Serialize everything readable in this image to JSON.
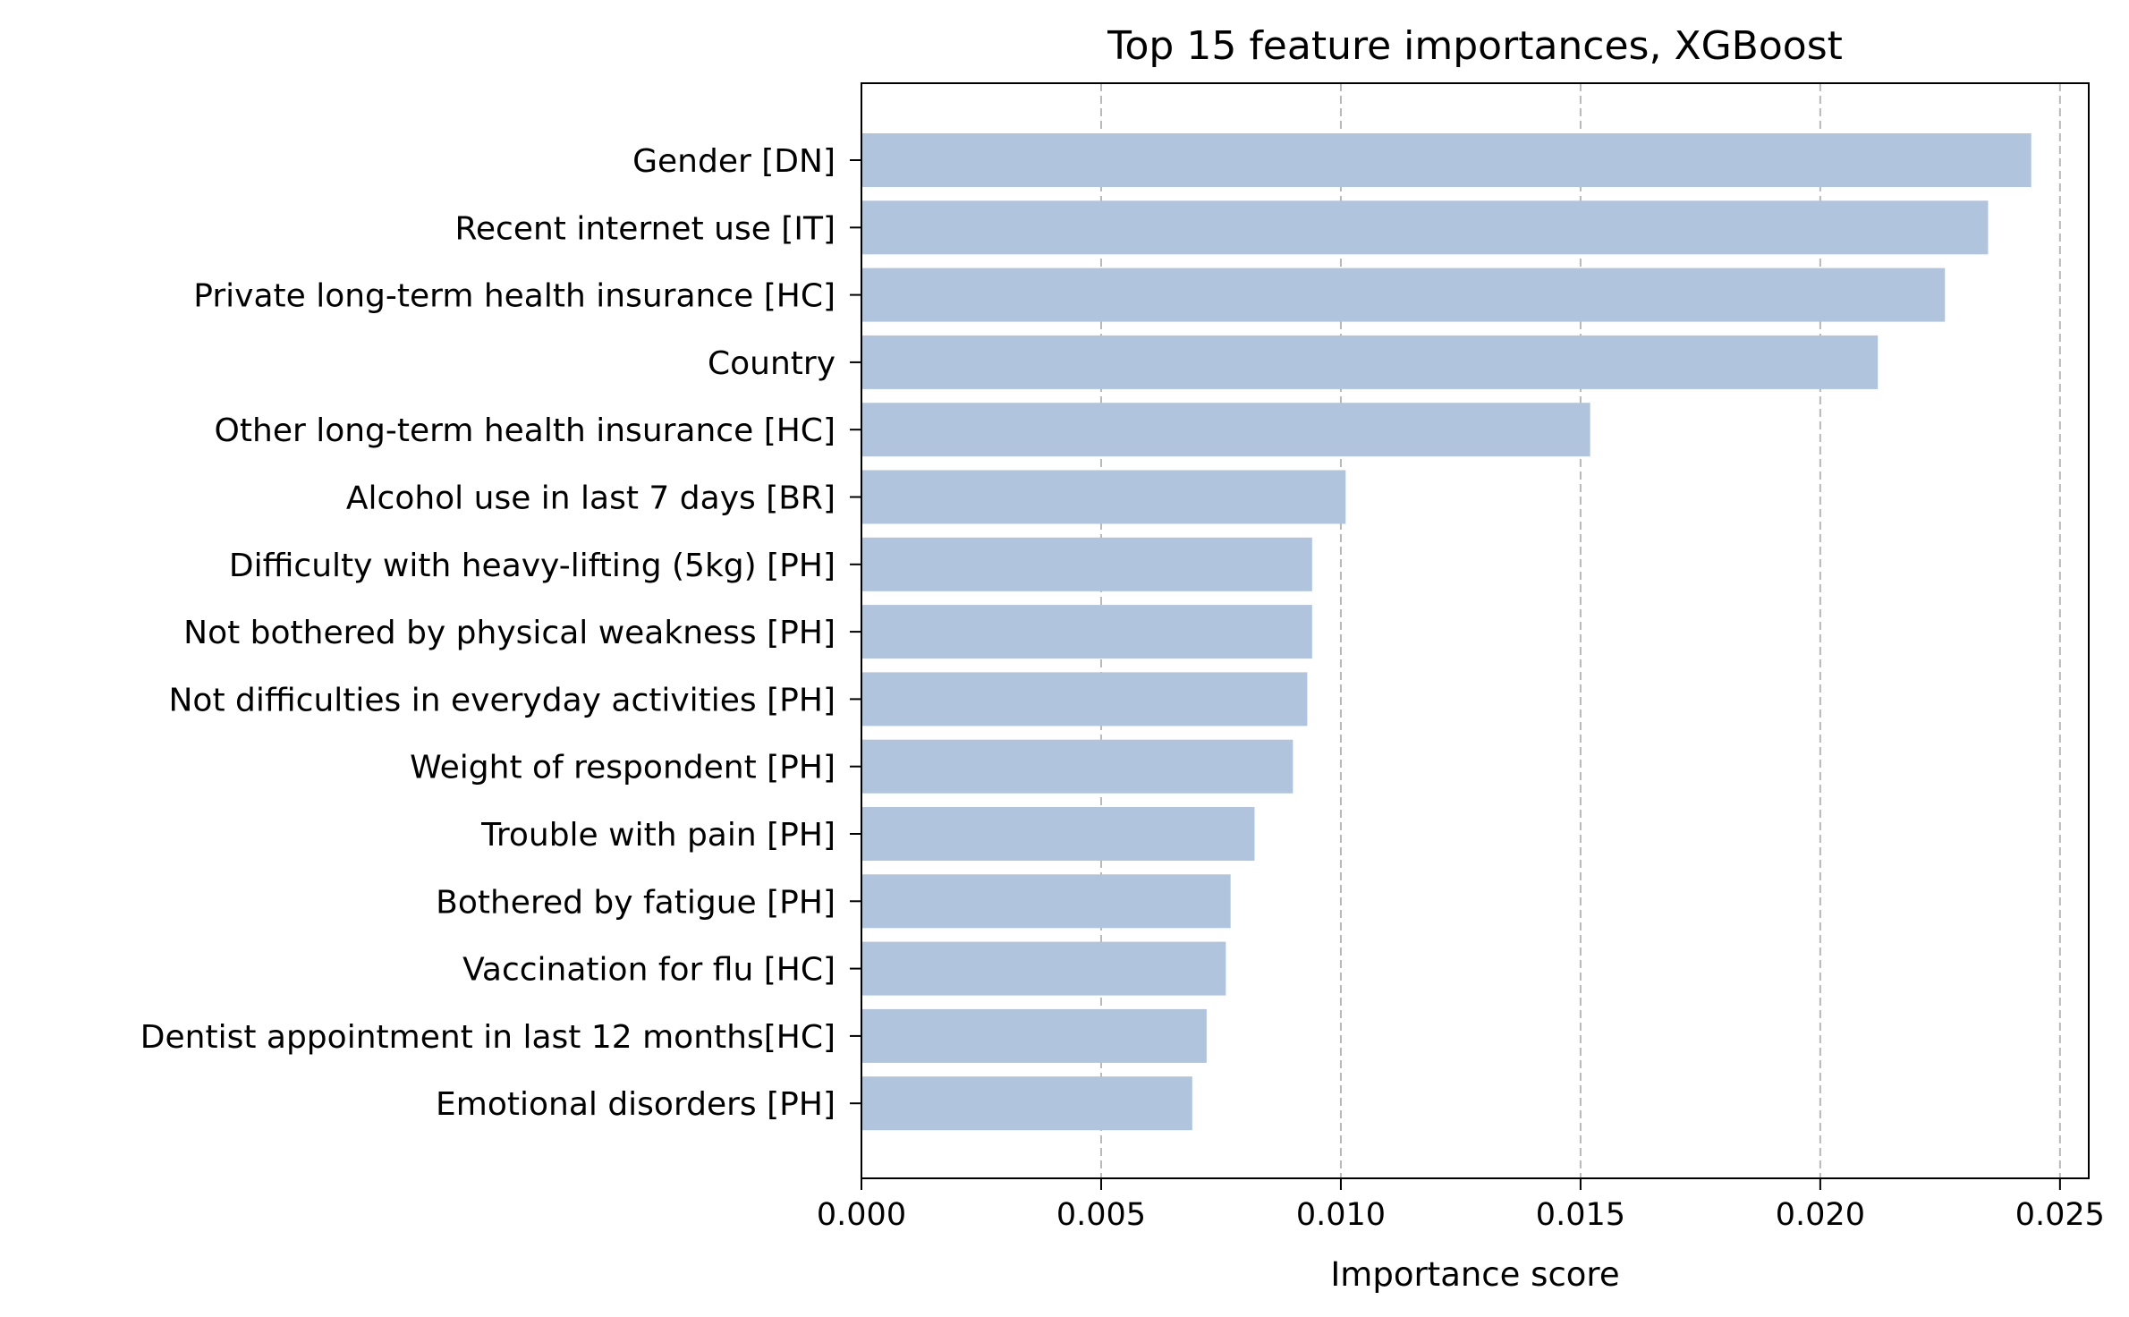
{
  "chart_data": {
    "type": "bar",
    "orientation": "horizontal",
    "title": "Top 15 feature importances, XGBoost",
    "xlabel": "Importance score",
    "ylabel": "",
    "xlim": [
      0,
      0.0256
    ],
    "xticks": [
      0.0,
      0.005,
      0.01,
      0.015,
      0.02,
      0.025
    ],
    "xtick_labels": [
      "0.000",
      "0.005",
      "0.010",
      "0.015",
      "0.020",
      "0.025"
    ],
    "grid": "x, dashed",
    "bar_color": "#b0c4de",
    "categories": [
      "Gender [DN]",
      "Recent internet use [IT]",
      "Private long-term health insurance [HC]",
      "Country",
      "Other long-term health insurance [HC]",
      "Alcohol use in last 7 days [BR]",
      "Difficulty with heavy-lifting (5kg) [PH]",
      "Not bothered by physical weakness [PH]",
      "Not difficulties in everyday activities [PH]",
      "Weight of respondent [PH]",
      "Trouble with pain [PH]",
      "Bothered by fatigue [PH]",
      "Vaccination for flu [HC]",
      "Dentist appointment in last 12 months[HC]",
      "Emotional disorders [PH]"
    ],
    "values": [
      0.0244,
      0.0235,
      0.0226,
      0.0212,
      0.0152,
      0.0101,
      0.0094,
      0.0094,
      0.0093,
      0.009,
      0.0082,
      0.0077,
      0.0076,
      0.0072,
      0.0069
    ]
  }
}
